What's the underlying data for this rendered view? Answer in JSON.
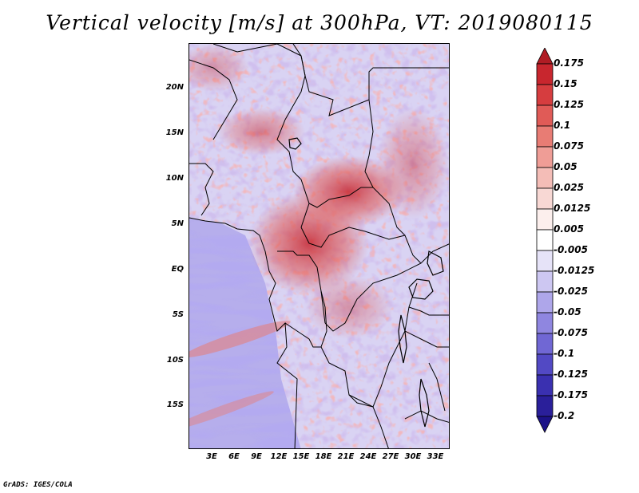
{
  "title": "Vertical velocity [m/s] at 300hPa, VT: 2019080115",
  "credit": "GrADS: IGES/COLA",
  "map": {
    "region": "Central Africa",
    "variable": "Vertical velocity",
    "units": "m/s",
    "level": "300hPa",
    "valid_time": "2019080115",
    "extent": {
      "lon_min": 0,
      "lon_max": 35,
      "lat_min": -20,
      "lat_max": 25
    },
    "lat_ticks": [
      {
        "value": 20,
        "label": "20N"
      },
      {
        "value": 15,
        "label": "15N"
      },
      {
        "value": 10,
        "label": "10N"
      },
      {
        "value": 5,
        "label": "5N"
      },
      {
        "value": 0,
        "label": "EQ"
      },
      {
        "value": -5,
        "label": "5S"
      },
      {
        "value": -10,
        "label": "10S"
      },
      {
        "value": -15,
        "label": "15S"
      }
    ],
    "lon_ticks": [
      {
        "value": 3,
        "label": "3E"
      },
      {
        "value": 6,
        "label": "6E"
      },
      {
        "value": 9,
        "label": "9E"
      },
      {
        "value": 12,
        "label": "12E"
      },
      {
        "value": 15,
        "label": "15E"
      },
      {
        "value": 18,
        "label": "18E"
      },
      {
        "value": 21,
        "label": "21E"
      },
      {
        "value": 24,
        "label": "24E"
      },
      {
        "value": 27,
        "label": "27E"
      },
      {
        "value": 30,
        "label": "30E"
      },
      {
        "value": 33,
        "label": "33E"
      }
    ]
  },
  "colorbar": {
    "levels": [
      "0.175",
      "0.15",
      "0.125",
      "0.1",
      "0.075",
      "0.05",
      "0.025",
      "0.0125",
      "0.005",
      "-0.005",
      "-0.0125",
      "-0.025",
      "-0.05",
      "-0.075",
      "-0.1",
      "-0.125",
      "-0.175",
      "-0.2"
    ],
    "colors": [
      "#b01c24",
      "#c8262e",
      "#d63d3f",
      "#e05b57",
      "#e87c74",
      "#ef9d96",
      "#f4bdb7",
      "#f8d8d4",
      "#fcefed",
      "#ffffff",
      "#e6e3f8",
      "#cdc7f2",
      "#aea6ea",
      "#8f86e0",
      "#7067d4",
      "#5249c4",
      "#3a30b0",
      "#2a1f9a",
      "#1c1288"
    ]
  }
}
